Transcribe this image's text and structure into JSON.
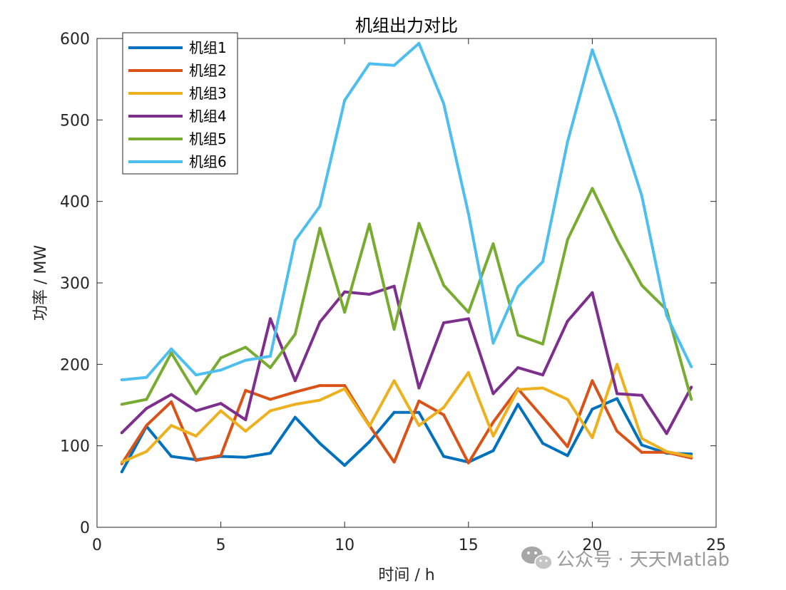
{
  "chart_data": {
    "type": "line",
    "title": "机组出力对比",
    "xlabel": "时间 / h",
    "ylabel": "功率 / MW",
    "xlim": [
      0,
      25
    ],
    "ylim": [
      0,
      600
    ],
    "xticks": [
      "0",
      "5",
      "10",
      "15",
      "20",
      "25"
    ],
    "yticks": [
      "0",
      "100",
      "200",
      "300",
      "400",
      "500",
      "600"
    ],
    "grid": false,
    "legend_position": "top-left",
    "x": [
      1,
      2,
      3,
      4,
      5,
      6,
      7,
      8,
      9,
      10,
      11,
      12,
      13,
      14,
      15,
      16,
      17,
      18,
      19,
      20,
      21,
      22,
      23,
      24
    ],
    "series": [
      {
        "name": "机组1",
        "color": "#0072BD",
        "values": [
          68,
          124,
          87,
          83,
          87,
          86,
          91,
          135,
          103,
          76,
          105,
          141,
          141,
          87,
          80,
          94,
          151,
          103,
          88,
          145,
          158,
          101,
          91,
          90
        ]
      },
      {
        "name": "机组2",
        "color": "#D95319",
        "values": [
          78,
          125,
          154,
          82,
          88,
          168,
          157,
          166,
          174,
          174,
          125,
          80,
          155,
          138,
          79,
          129,
          170,
          135,
          99,
          180,
          118,
          92,
          92,
          85
        ]
      },
      {
        "name": "机组3",
        "color": "#EDB120",
        "values": [
          80,
          93,
          125,
          112,
          143,
          118,
          143,
          151,
          156,
          170,
          124,
          180,
          125,
          147,
          190,
          112,
          169,
          171,
          157,
          110,
          200,
          109,
          93,
          87
        ]
      },
      {
        "name": "机组4",
        "color": "#7E2F8E",
        "values": [
          116,
          146,
          163,
          143,
          152,
          132,
          256,
          180,
          252,
          289,
          286,
          296,
          171,
          251,
          256,
          164,
          196,
          187,
          253,
          288,
          164,
          162,
          115,
          172
        ]
      },
      {
        "name": "机组5",
        "color": "#77AC30",
        "values": [
          151,
          157,
          214,
          164,
          208,
          221,
          196,
          237,
          367,
          264,
          372,
          243,
          373,
          297,
          264,
          348,
          236,
          225,
          353,
          416,
          353,
          297,
          267,
          157
        ]
      },
      {
        "name": "机组6",
        "color": "#4DBEEE",
        "values": [
          181,
          184,
          219,
          187,
          193,
          205,
          210,
          352,
          394,
          524,
          569,
          567,
          594,
          520,
          385,
          226,
          295,
          326,
          473,
          586,
          502,
          407,
          260,
          197
        ]
      }
    ]
  },
  "watermark": {
    "text": "公众号 · 天天Matlab",
    "icon": "wechat-icon"
  }
}
